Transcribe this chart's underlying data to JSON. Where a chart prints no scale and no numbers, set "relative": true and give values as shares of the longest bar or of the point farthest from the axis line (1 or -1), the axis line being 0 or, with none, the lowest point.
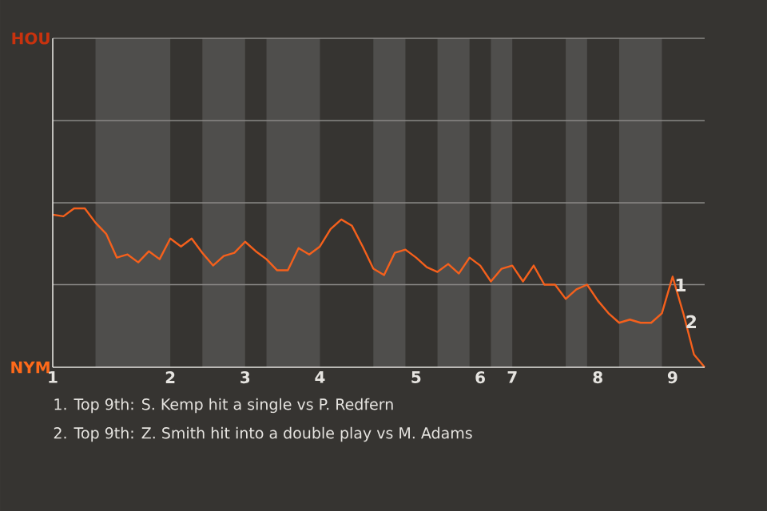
{
  "chart_data": {
    "type": "line",
    "relative": true,
    "categories": [
      "1",
      null,
      null,
      null,
      null,
      null,
      null,
      null,
      null,
      null,
      null,
      "2",
      null,
      null,
      null,
      null,
      null,
      null,
      "3",
      null,
      null,
      null,
      null,
      null,
      null,
      "4",
      null,
      null,
      null,
      null,
      null,
      null,
      null,
      null,
      "5",
      null,
      null,
      null,
      null,
      null,
      "6",
      null,
      null,
      "7",
      null,
      null,
      null,
      null,
      null,
      null,
      null,
      "8",
      null,
      null,
      null,
      null,
      null,
      null,
      "9",
      null,
      null,
      null
    ],
    "series": [
      {
        "color": "#f5601c",
        "values": [
          0.96,
          0.95,
          1,
          1,
          0.91,
          0.84,
          0.69,
          0.71,
          0.66,
          0.73,
          0.68,
          0.81,
          0.76,
          0.81,
          0.72,
          0.64,
          0.7,
          0.72,
          0.79,
          0.73,
          0.68,
          0.61,
          0.61,
          0.75,
          0.71,
          0.76,
          0.87,
          0.93,
          0.89,
          0.76,
          0.62,
          0.58,
          0.72,
          0.74,
          0.69,
          0.63,
          0.6,
          0.65,
          0.59,
          0.69,
          0.64,
          0.54,
          0.62,
          0.64,
          0.54,
          0.64,
          0.52,
          0.52,
          0.43,
          0.49,
          0.52,
          0.42,
          0.34,
          0.28,
          0.3,
          0.28,
          0.28,
          0.34,
          0.57,
          0.34,
          0.08,
          0
        ]
      }
    ],
    "ref_lines": [
      {
        "axis": "y",
        "value": 0.52,
        "color": "#8a8886"
      }
    ],
    "annotations": [
      "HOU",
      "NYM",
      {
        "text": "1",
        "x": "9",
        "y": 0.57
      },
      {
        "text": "2",
        "y": 0.34
      },
      "1. Top 9th: S. Kemp hit a single vs P. Redfern",
      "2. Top 9th: Z. Smith hit into a double play vs M. Adams"
    ]
  }
}
